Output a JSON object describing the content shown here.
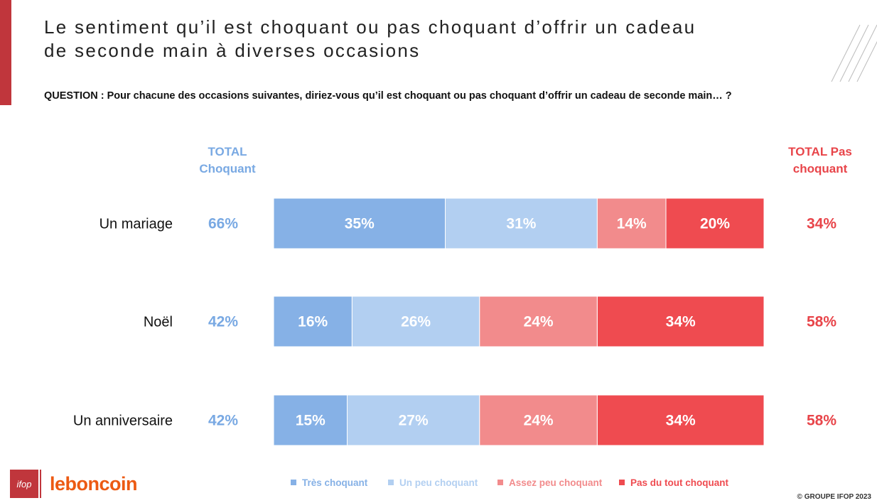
{
  "title_line1": "Le sentiment qu’il est choquant ou pas choquant d’offrir un cadeau",
  "title_line2": "de seconde main à diverses occasions",
  "question": "QUESTION : Pour chacune des occasions suivantes, diriez-vous qu’il est choquant ou pas choquant d’offrir un cadeau de seconde main… ?",
  "total_left_header": [
    "TOTAL",
    "Choquant"
  ],
  "total_right_header": [
    "TOTAL Pas",
    "choquant"
  ],
  "logo": {
    "ifop": "ifop",
    "brand": "leboncoin"
  },
  "copyright": "© GROUPE IFOP 2023",
  "colors": {
    "tres": "#86b1e6",
    "peu": "#b2cff1",
    "assez": "#f28b8c",
    "pasdutout": "#ef4b50",
    "total_left": "#79a9e3",
    "total_right": "#e8454a",
    "accent": "#c0363c"
  },
  "chart_data": {
    "type": "bar",
    "orientation": "horizontal",
    "stacked": true,
    "normalized": true,
    "categories": [
      "Un mariage",
      "Noël",
      "Un anniversaire"
    ],
    "series": [
      {
        "name": "Très choquant",
        "values": [
          35,
          16,
          15
        ],
        "labels": [
          "35%",
          "16%",
          "15%"
        ],
        "color": "#86b1e6"
      },
      {
        "name": "Un peu choquant",
        "values": [
          31,
          26,
          27
        ],
        "labels": [
          "31%",
          "26%",
          "27%"
        ],
        "color": "#b2cff1"
      },
      {
        "name": "Assez peu choquant",
        "values": [
          14,
          24,
          24
        ],
        "labels": [
          "14%",
          "24%",
          "24%"
        ],
        "color": "#f28b8c"
      },
      {
        "name": "Pas du tout choquant",
        "values": [
          20,
          34,
          34
        ],
        "labels": [
          "20%",
          "34%",
          "34%"
        ],
        "color": "#ef4b50"
      }
    ],
    "total_choquant": [
      "66%",
      "42%",
      "42%"
    ],
    "total_pas_choquant": [
      "34%",
      "58%",
      "58%"
    ],
    "legend_position": "bottom",
    "grid": false
  }
}
